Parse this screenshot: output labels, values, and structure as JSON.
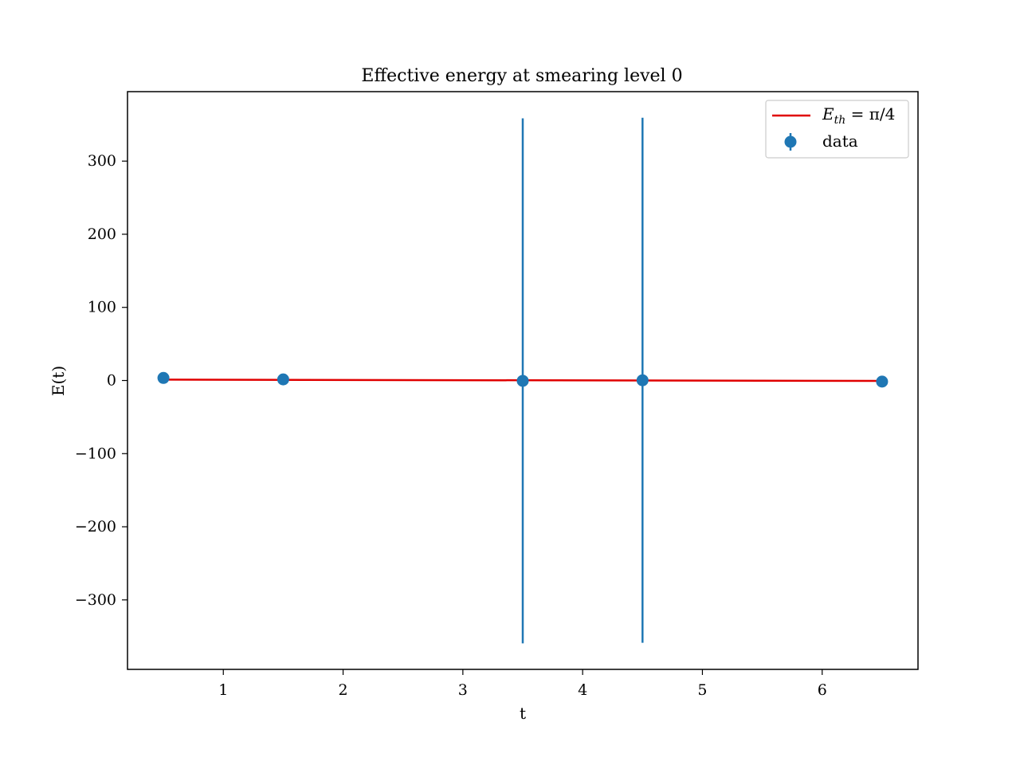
{
  "chart_data": {
    "type": "scatter",
    "title": "Effective energy at smearing level 0",
    "xlabel": "t",
    "ylabel": "E(t)",
    "xlim": [
      0.2,
      6.8
    ],
    "ylim": [
      -395,
      395
    ],
    "xticks": [
      1,
      2,
      3,
      4,
      5,
      6
    ],
    "yticks": [
      -300,
      -200,
      -100,
      0,
      100,
      200,
      300
    ],
    "legend_position": "top-right",
    "grid": false,
    "series": [
      {
        "name": "data",
        "kind": "errorbar",
        "color": "#1f77b4",
        "points": [
          {
            "x": 0.5,
            "y": 3.5,
            "err": 0
          },
          {
            "x": 1.5,
            "y": 1.5,
            "err": 0
          },
          {
            "x": 3.5,
            "y": -0.5,
            "err": 359
          },
          {
            "x": 4.5,
            "y": 0.3,
            "err": 359
          },
          {
            "x": 6.5,
            "y": -1.5,
            "err": 0
          }
        ]
      },
      {
        "name_main": "E",
        "name_sub": "th",
        "name_rest": " = π/4",
        "kind": "line",
        "color": "#e00000",
        "x": [
          0.5,
          6.5
        ],
        "y": [
          1.2,
          -0.6
        ]
      }
    ]
  }
}
